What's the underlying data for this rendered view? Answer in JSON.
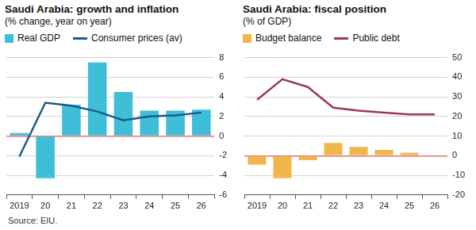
{
  "chart_data": [
    {
      "type": "bar",
      "title": "Saudi Arabia: growth and inflation",
      "subtitle": "(% change, year on year)",
      "categories": [
        "2019",
        "20",
        "21",
        "22",
        "23",
        "24",
        "25",
        "26"
      ],
      "series": [
        {
          "name": "Real GDP",
          "type": "bar",
          "color": "#3fbfd7",
          "values": [
            0.3,
            -4.3,
            3.2,
            7.5,
            4.5,
            2.6,
            2.6,
            2.7
          ]
        },
        {
          "name": "Consumer prices (av)",
          "type": "line",
          "color": "#1b5a8a",
          "values": [
            -2.1,
            3.4,
            3.1,
            2.5,
            1.6,
            2.0,
            2.1,
            2.4
          ]
        }
      ],
      "ylim": [
        -6,
        8
      ],
      "yticks": [
        -6,
        -4,
        -2,
        0,
        2,
        4,
        6,
        8
      ],
      "grid": true
    },
    {
      "type": "bar",
      "title": "Saudi Arabia: fiscal position",
      "subtitle": "(% of GDP)",
      "categories": [
        "2019",
        "20",
        "21",
        "22",
        "23",
        "24",
        "25",
        "26"
      ],
      "series": [
        {
          "name": "Budget balance",
          "type": "bar",
          "color": "#f0b64c",
          "values": [
            -4.5,
            -11.5,
            -2.3,
            6.5,
            4.5,
            3.0,
            1.5,
            null
          ]
        },
        {
          "name": "Public debt",
          "type": "line",
          "color": "#9a3a55",
          "values": [
            28.5,
            39,
            35,
            24.5,
            23,
            22,
            21,
            21
          ]
        }
      ],
      "ylim": [
        -20,
        50
      ],
      "yticks": [
        -20,
        -10,
        0,
        10,
        20,
        30,
        40,
        50
      ],
      "grid": true
    }
  ],
  "source": "Source: EIU."
}
